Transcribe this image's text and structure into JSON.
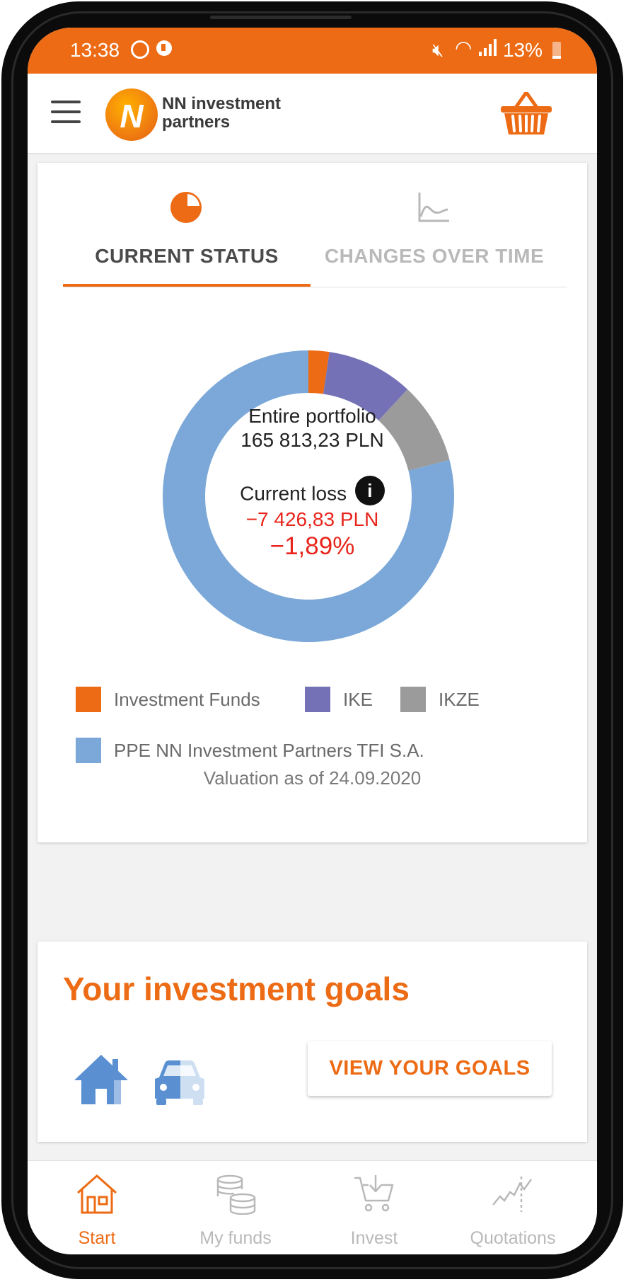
{
  "status_bar": {
    "time": "13:38",
    "battery": "13%"
  },
  "header": {
    "brand_line1": "NN investment",
    "brand_line2": "partners",
    "logo_letter": "N"
  },
  "tabs": [
    {
      "label": "CURRENT STATUS",
      "icon": "pie-chart-icon",
      "active": true
    },
    {
      "label": "CHANGES OVER TIME",
      "icon": "line-chart-icon",
      "active": false
    }
  ],
  "chart_data": {
    "type": "pie",
    "donut": true,
    "labels": [
      "Investment Funds",
      "IKE",
      "IKZE",
      "PPE NN Investment Partners TFI S.A."
    ],
    "values": [
      2.3,
      9.6,
      9.1,
      79.0
    ],
    "colors": [
      "#ec6b14",
      "#7471b6",
      "#9b9b9b",
      "#7ba8d8"
    ],
    "legend": "bottom"
  },
  "portfolio": {
    "title": "Entire portfolio",
    "value": "165 813,23 PLN",
    "loss_label": "Current loss",
    "loss_value": "−7 426,83 PLN",
    "loss_percent": "−1,89%"
  },
  "valuation": "Valuation as of 24.09.2020",
  "goals": {
    "title": "Your investment goals",
    "button": "VIEW YOUR GOALS",
    "icons": [
      "house-icon",
      "car-icon"
    ]
  },
  "bottom_nav": [
    {
      "label": "Start",
      "icon": "home-icon",
      "active": true
    },
    {
      "label": "My funds",
      "icon": "coins-icon",
      "active": false
    },
    {
      "label": "Invest",
      "icon": "cart-icon",
      "active": false
    },
    {
      "label": "Quotations",
      "icon": "quotations-chart-icon",
      "active": false
    }
  ],
  "colors": {
    "accent": "#ec6b14",
    "loss": "#e8251c",
    "inactive": "#b9b9b9"
  }
}
